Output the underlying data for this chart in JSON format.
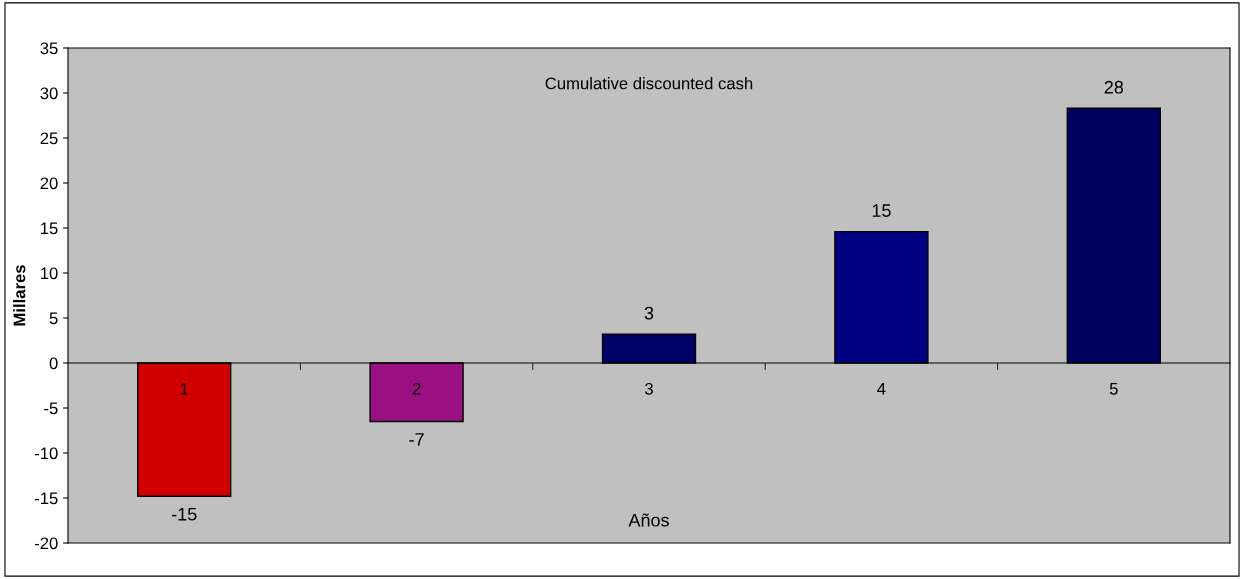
{
  "chart_data": {
    "type": "bar",
    "title": "Cumulative discounted cash",
    "xlabel": "Años",
    "ylabel": "Millares",
    "categories": [
      "1",
      "2",
      "3",
      "4",
      "5"
    ],
    "values": [
      -14.8,
      -6.5,
      3.2,
      14.6,
      28.3
    ],
    "value_labels": [
      "-15",
      "-7",
      "3",
      "15",
      "28"
    ],
    "colors": [
      "#d00000",
      "#9a1080",
      "#000066",
      "#000080",
      "#000060"
    ],
    "ylim": [
      -20,
      35
    ],
    "yticks": [
      -20,
      -15,
      -10,
      -5,
      0,
      5,
      10,
      15,
      20,
      25,
      30,
      35
    ],
    "grid": false
  }
}
